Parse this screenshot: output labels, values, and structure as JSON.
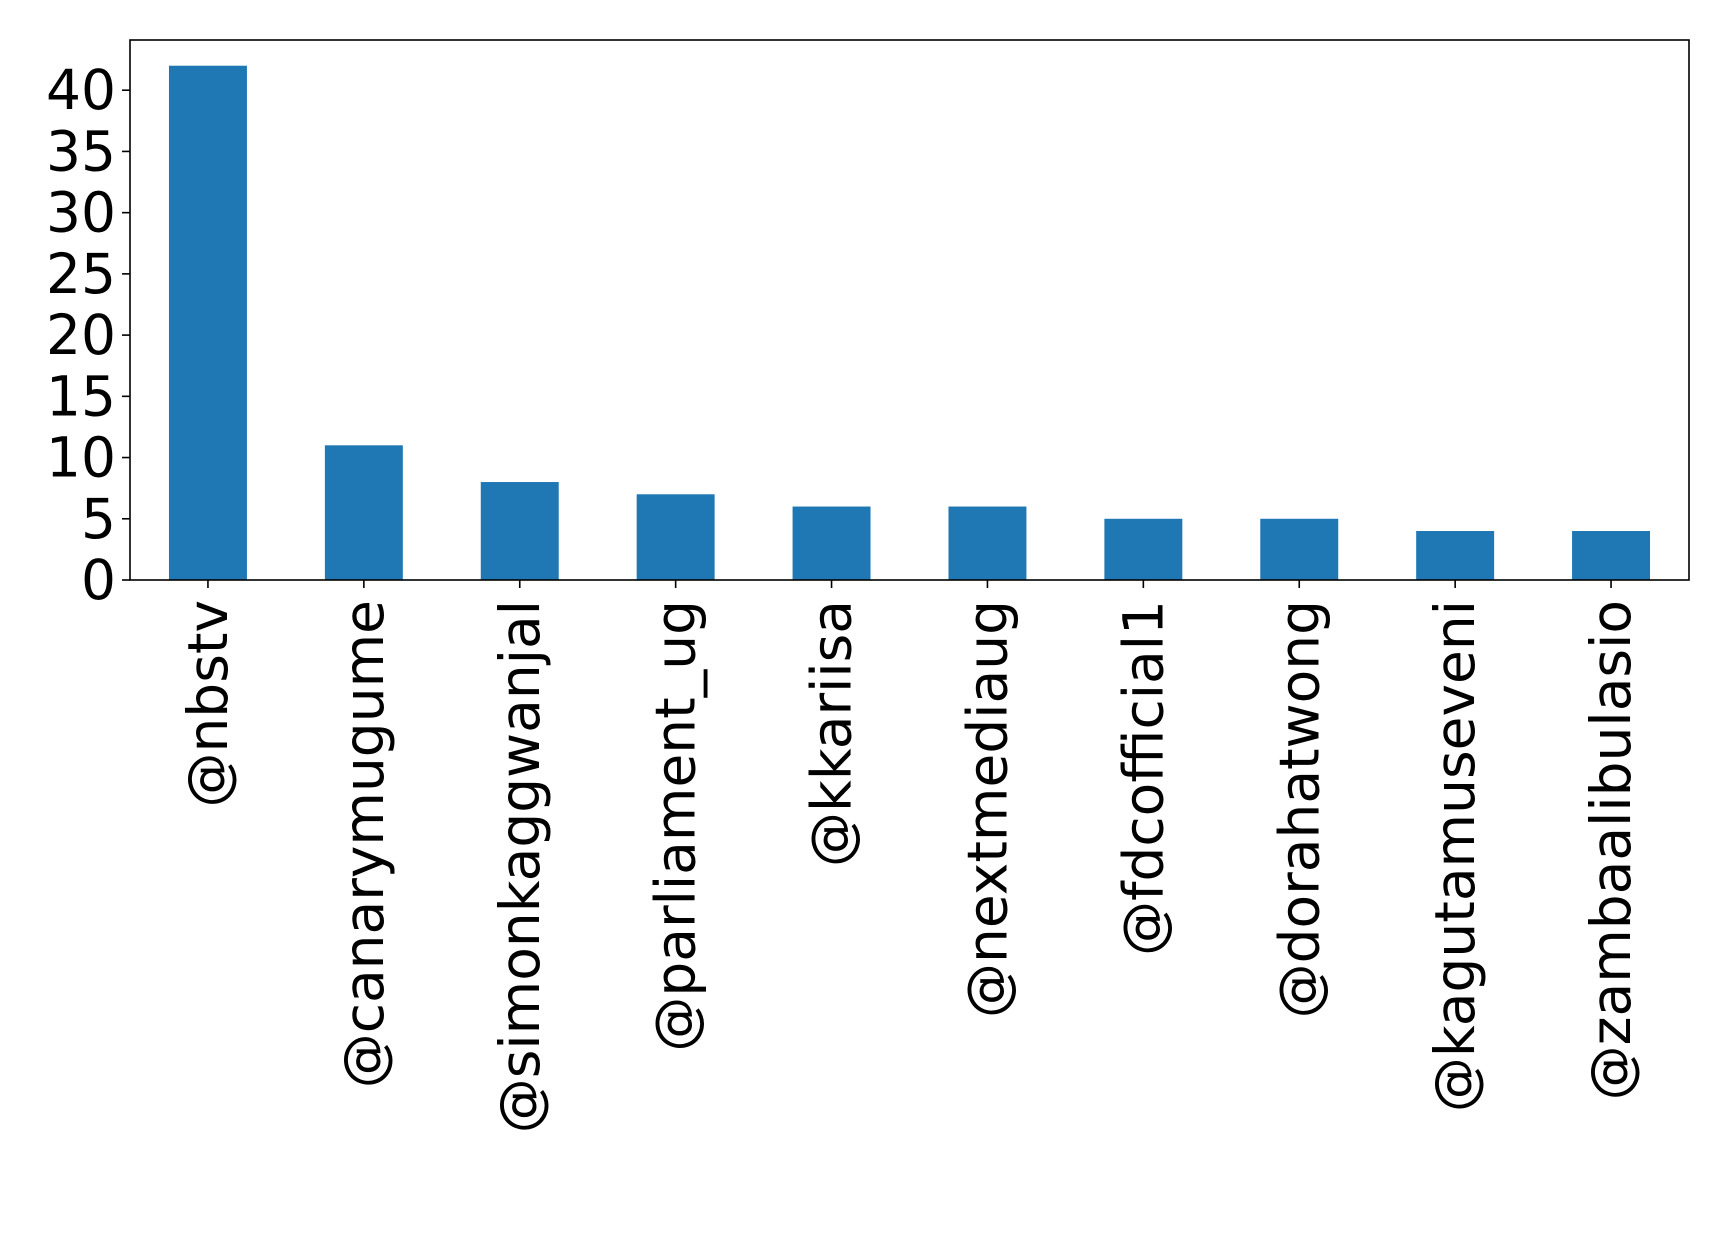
{
  "chart_data": {
    "type": "bar",
    "title": "",
    "xlabel": "",
    "ylabel": "",
    "categories": [
      "@nbstv",
      "@canarymugume",
      "@simonkaggwanjal",
      "@parliament_ug",
      "@kkariisa",
      "@nextmediaug",
      "@fdcofficial1",
      "@dorahatwong",
      "@kagutamuseveni",
      "@zambaalibulasio"
    ],
    "values": [
      42,
      11,
      8,
      7,
      6,
      6,
      5,
      5,
      4,
      4
    ],
    "ylim": [
      0,
      44.1
    ],
    "yticks": [
      0,
      5,
      10,
      15,
      20,
      25,
      30,
      35,
      40
    ],
    "bar_color": "#1f77b4",
    "grid": false,
    "legend": "none"
  }
}
